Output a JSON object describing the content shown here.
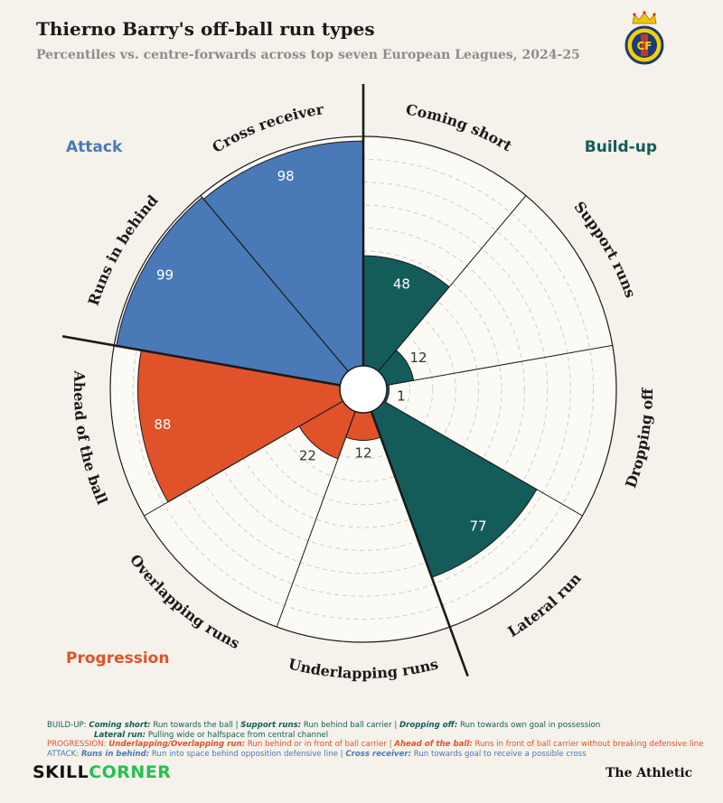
{
  "header": {
    "title": "Thierno Barry's off-ball run types",
    "subtitle": "Percentiles vs. centre-forwards across top seven European Leagues, 2024-25"
  },
  "club_logo": {
    "name": "villarreal-crest",
    "letters": "CF"
  },
  "chart_data": {
    "type": "polar-area",
    "range": [
      0,
      100
    ],
    "gridlines": [
      10,
      20,
      30,
      40,
      50,
      60,
      70,
      80,
      90
    ],
    "groups": [
      {
        "name": "Build-up",
        "color": "#145c5a"
      },
      {
        "name": "Progression",
        "color": "#e0522a"
      },
      {
        "name": "Attack",
        "color": "#4a79b8"
      }
    ],
    "categories": [
      "Coming short",
      "Support runs",
      "Dropping off",
      "Lateral run",
      "Underlapping runs",
      "Overlapping runs",
      "Ahead of the ball",
      "Runs in behind",
      "Cross receiver"
    ],
    "category_groups": [
      "Build-up",
      "Build-up",
      "Build-up",
      "Build-up",
      "Progression",
      "Progression",
      "Progression",
      "Attack",
      "Attack"
    ],
    "values": [
      48,
      12,
      1,
      77,
      12,
      22,
      88,
      99,
      98
    ]
  },
  "legend": {
    "build_up": {
      "prefix": "BUILD-UP: ",
      "t1": "Coming short:",
      "d1": " Run towards the ball | ",
      "t2": "Support runs:",
      "d2": " Run behind ball carrier | ",
      "t3": "Dropping off:",
      "d3": " Run towards own goal in possession",
      "t4": "Lateral run:",
      "d4": " Pulling wide or halfspace from central channel"
    },
    "progression": {
      "prefix": "PROGRESSION: ",
      "t1": "Underlapping/Overlapping run:",
      "d1": " Run behind or in front of ball carrier | ",
      "t2": "Ahead of the ball:",
      "d2": " Runs in front of ball carrier without breaking defensive line"
    },
    "attack": {
      "prefix": "ATTACK: ",
      "t1": "Runs in behind:",
      "d1": " Run into space behind opposition defensive line | ",
      "t2": "Cross receiver:",
      "d2": " Run towards goal to receive a possible cross"
    }
  },
  "footer": {
    "skill_a": "SKILL",
    "skill_b": "CORNER",
    "publisher": "The Athletic"
  }
}
